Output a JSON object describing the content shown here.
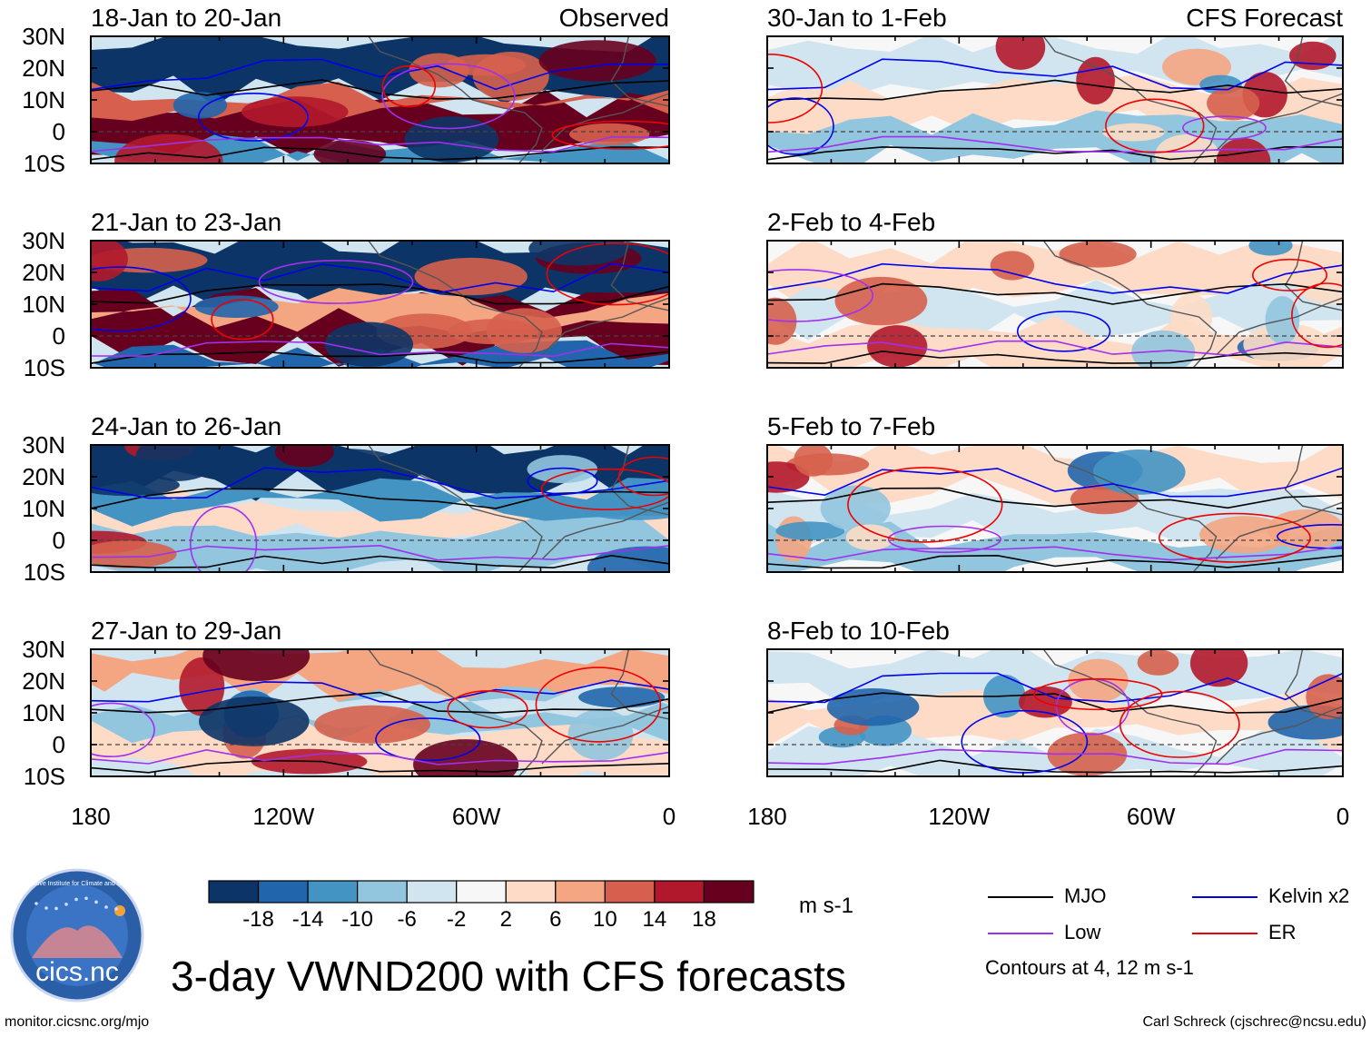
{
  "title": "3-day VWND200 with CFS forecasts",
  "columns": {
    "left_label": "Observed",
    "right_label": "CFS Forecast"
  },
  "panels": [
    {
      "period": "18-Jan to 20-Jan",
      "column": "left",
      "row": 0
    },
    {
      "period": "21-Jan to 23-Jan",
      "column": "left",
      "row": 1
    },
    {
      "period": "24-Jan to 26-Jan",
      "column": "left",
      "row": 2
    },
    {
      "period": "27-Jan to 29-Jan",
      "column": "left",
      "row": 3
    },
    {
      "period": "30-Jan to 1-Feb",
      "column": "right",
      "row": 0
    },
    {
      "period": "2-Feb to 4-Feb",
      "column": "right",
      "row": 1
    },
    {
      "period": "5-Feb to 7-Feb",
      "column": "right",
      "row": 2
    },
    {
      "period": "8-Feb to 10-Feb",
      "column": "right",
      "row": 3
    }
  ],
  "lat_labels": [
    "30N",
    "20N",
    "10N",
    "0",
    "10S"
  ],
  "lon_labels": [
    "180",
    "120W",
    "60W",
    "0"
  ],
  "colorbar": {
    "ticks": [
      "-18",
      "-14",
      "-10",
      "-6",
      "-2",
      "2",
      "6",
      "10",
      "14",
      "18"
    ],
    "colors": [
      "#0d3466",
      "#2166ac",
      "#4393c3",
      "#92c5de",
      "#d1e5f0",
      "#f7f7f7",
      "#fddbc7",
      "#f4a582",
      "#d6604d",
      "#b2182b",
      "#67001f"
    ],
    "units": "m s-1"
  },
  "legend": {
    "items": [
      {
        "label": "MJO",
        "color": "#000000"
      },
      {
        "label": "Kelvin x2",
        "color": "#0000ee"
      },
      {
        "label": "Low",
        "color": "#a030ee"
      },
      {
        "label": "ER",
        "color": "#ee0000"
      }
    ],
    "note": "Contours at 4, 12 m s-1"
  },
  "logo": {
    "text": "cics.nc",
    "ring_text": "Cooperative Institute for Climate and Satellites"
  },
  "footer": {
    "left": "monitor.cicsnc.org/mjo",
    "right": "Carl Schreck (cjschrec@ncsu.edu)"
  }
}
